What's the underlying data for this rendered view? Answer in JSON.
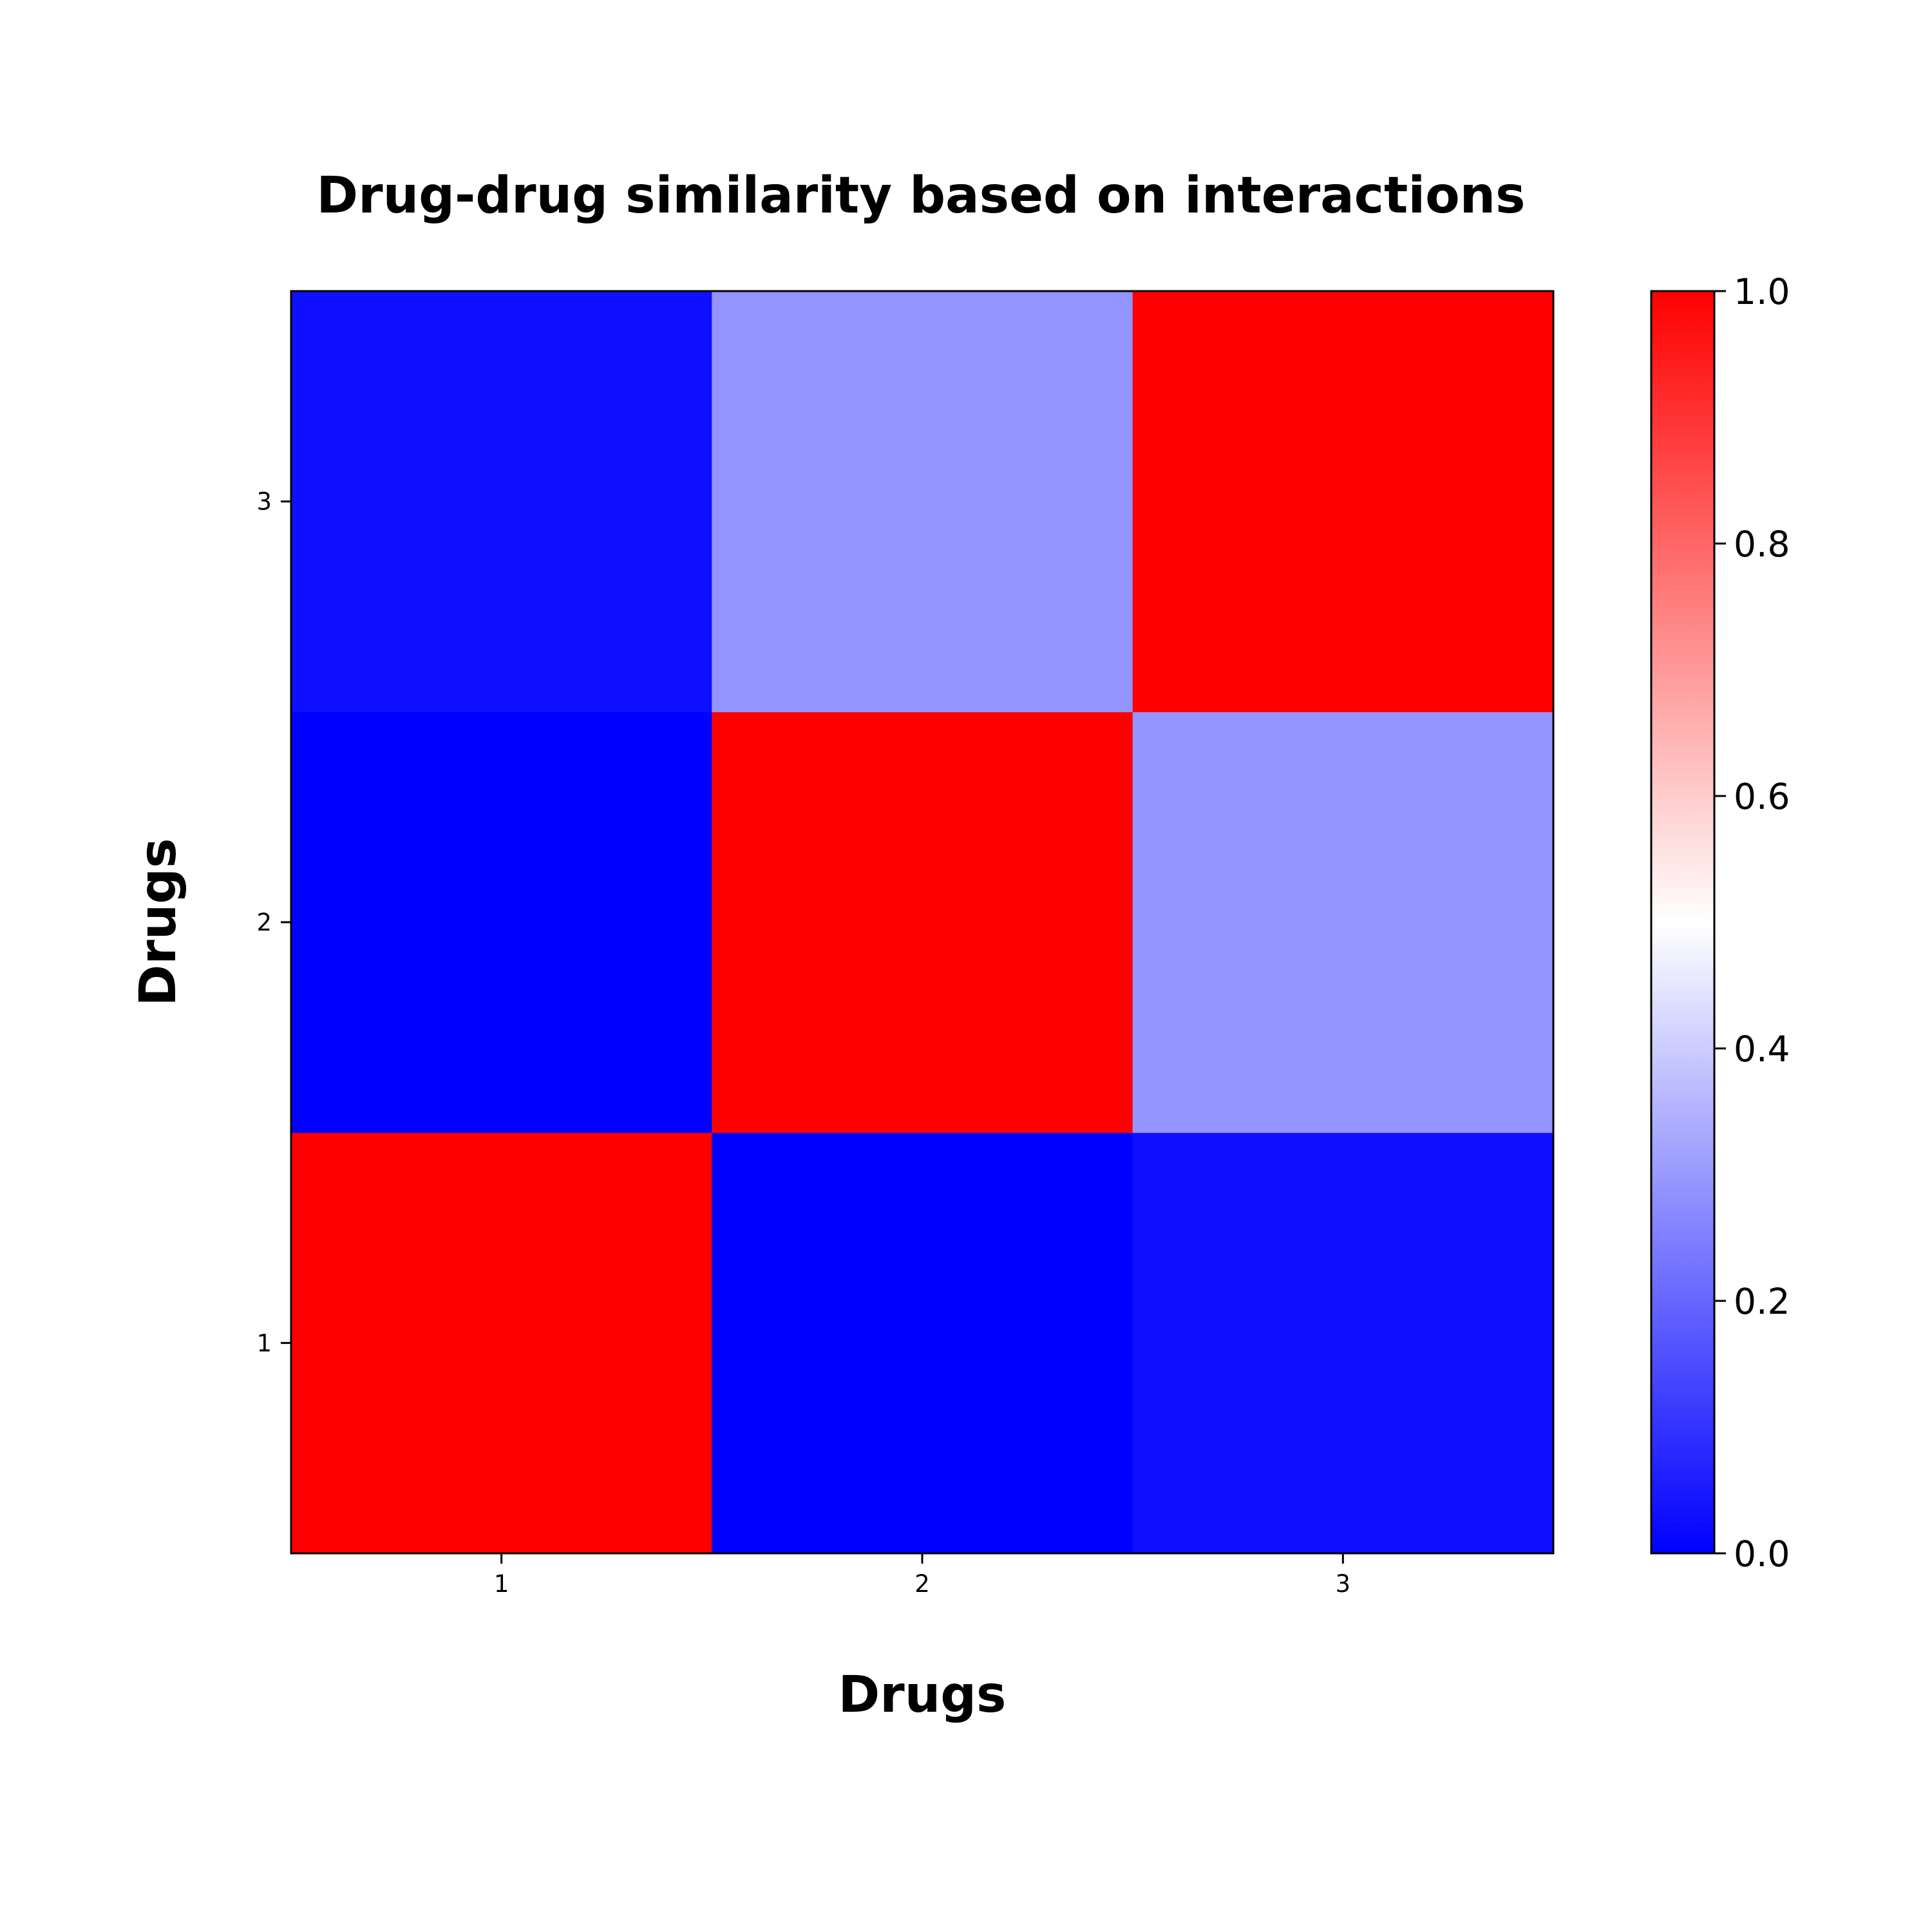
{
  "chart_data": {
    "type": "heatmap",
    "title": "Drug-drug similarity based on interactions",
    "xlabel": "Drugs",
    "ylabel": "Drugs",
    "x_categories": [
      "1",
      "2",
      "3"
    ],
    "y_categories": [
      "1",
      "2",
      "3"
    ],
    "values": [
      [
        1.0,
        0.0,
        0.03
      ],
      [
        0.0,
        1.0,
        0.29
      ],
      [
        0.03,
        0.29,
        1.0
      ]
    ],
    "colormap": {
      "name": "bwr",
      "low": "#0000ff",
      "mid": "#ffffff",
      "high": "#ff0000"
    },
    "colorbar": {
      "range": [
        0.0,
        1.0
      ],
      "ticks": [
        "0.0",
        "0.2",
        "0.4",
        "0.6",
        "0.8",
        "1.0"
      ],
      "location": "right"
    }
  }
}
